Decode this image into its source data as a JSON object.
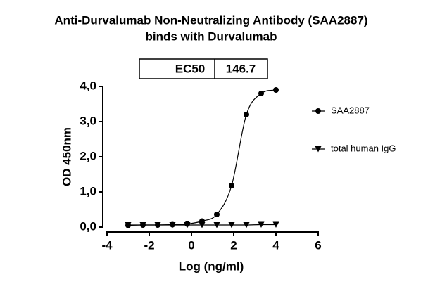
{
  "chart_data": {
    "type": "line",
    "title": [
      "Anti-Durvalumab Non-Neutralizing Antibody (SAA2887)",
      "binds with Durvalumab"
    ],
    "annotation": {
      "label": "EC50",
      "value": 146.7
    },
    "x_label": "Log (ng/ml)",
    "y_label": "OD 450nm",
    "x": [
      -3.0,
      -2.3,
      -1.6,
      -0.9,
      -0.2,
      0.5,
      1.2,
      1.9,
      2.6,
      3.3,
      4.0
    ],
    "series": [
      {
        "name": "SAA2887",
        "color": "#000000",
        "marker": "circle",
        "values": [
          0.05,
          0.06,
          0.06,
          0.07,
          0.09,
          0.17,
          0.36,
          1.18,
          3.2,
          3.8,
          3.9
        ]
      },
      {
        "name": "total human IgG",
        "color": "#000000",
        "marker": "triangle-down",
        "values": [
          0.06,
          0.06,
          0.06,
          0.06,
          0.06,
          0.06,
          0.06,
          0.06,
          0.06,
          0.07,
          0.07
        ]
      }
    ],
    "xlim": [
      -4,
      6
    ],
    "xticks": [
      -4,
      -2,
      0,
      2,
      4,
      6
    ],
    "ylim": [
      0,
      4
    ],
    "yticks": [
      {
        "value": 0,
        "label": "0,0"
      },
      {
        "value": 1,
        "label": "1,0"
      },
      {
        "value": 2,
        "label": "2,0"
      },
      {
        "value": 3,
        "label": "3,0"
      },
      {
        "value": 4,
        "label": "4,0"
      }
    ],
    "legend": "right"
  }
}
